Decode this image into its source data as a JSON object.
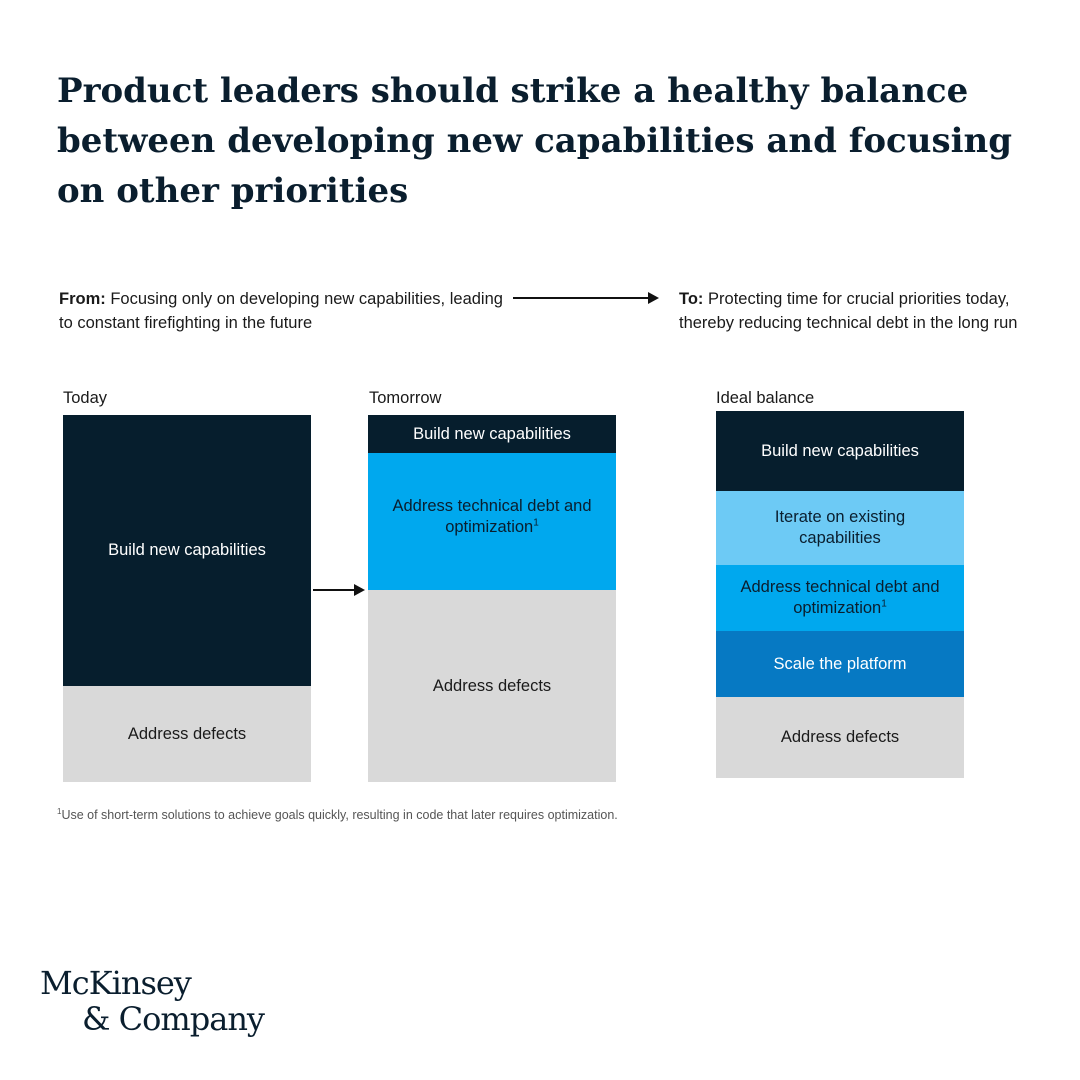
{
  "title": {
    "line1": "Product leaders should strike a healthy balance",
    "line2": "between developing new capabilities and focusing",
    "line3": "on other priorities"
  },
  "from": {
    "label": "From:",
    "text": "Focusing only on developing new capabilities, leading to constant firefighting in the future"
  },
  "to": {
    "label": "To:",
    "text": "Protecting time for crucial priorities today, thereby reducing technical debt in the long run"
  },
  "columns": {
    "today": {
      "label": "Today",
      "segments": [
        "Build new capabilities",
        "Address defects"
      ]
    },
    "tomorrow": {
      "label": "Tomorrow",
      "segments": [
        "Build new capabilities",
        "Address technical debt and optimization",
        "Address defects"
      ]
    },
    "ideal": {
      "label": "Ideal balance",
      "segments": [
        "Build new capabilities",
        "Iterate on existing capabilities",
        "Address technical debt and optimization",
        "Scale the platform",
        "Address defects"
      ]
    }
  },
  "footnote_marker": "1",
  "footnote": "Use of short-term solutions to achieve goals quickly, resulting in code that later requires optimization.",
  "logo": {
    "line1": "McKinsey",
    "line2": "& Company"
  },
  "colors": {
    "navy": "#061e2d",
    "gray": "#d9d9d9",
    "blue": "#00a8ee",
    "light_blue": "#6dcaf5",
    "mid_blue": "#0679c3"
  }
}
